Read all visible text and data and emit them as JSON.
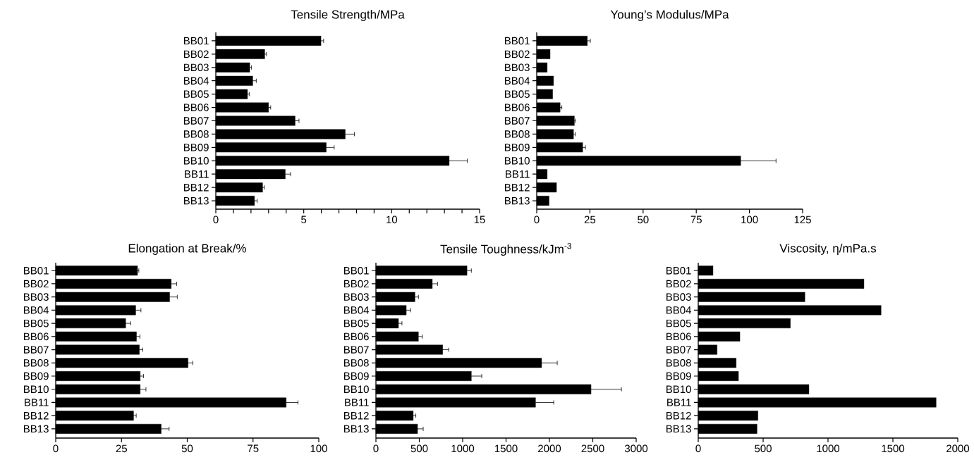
{
  "chart_data": [
    {
      "type": "bar",
      "orientation": "horizontal",
      "title": "Tensile Strength/MPa",
      "categories": [
        "BB01",
        "BB02",
        "BB03",
        "BB04",
        "BB05",
        "BB06",
        "BB07",
        "BB08",
        "BB09",
        "BB10",
        "BB11",
        "BB12",
        "BB13"
      ],
      "color": "#000000",
      "values": [
        5.98,
        2.78,
        1.93,
        2.1,
        1.8,
        3.0,
        4.51,
        7.36,
        6.28,
        13.27,
        3.95,
        2.66,
        2.2
      ],
      "errors": [
        0.15,
        0.1,
        0.1,
        0.2,
        0.1,
        0.12,
        0.22,
        0.52,
        0.45,
        1.03,
        0.3,
        0.1,
        0.15
      ],
      "xlim": [
        0,
        15
      ],
      "xticks": [
        0,
        {
          "value": 1,
          "label": null
        },
        {
          "value": 2,
          "label": null
        },
        {
          "value": 3,
          "label": null
        },
        {
          "value": 4,
          "label": null
        },
        5,
        {
          "value": 6,
          "label": null
        },
        {
          "value": 7,
          "label": null
        },
        {
          "value": 8,
          "label": null
        },
        {
          "value": 9,
          "label": null
        },
        10,
        {
          "value": 11,
          "label": null
        },
        {
          "value": 12,
          "label": null
        },
        {
          "value": 13,
          "label": null
        },
        {
          "value": 14,
          "label": null
        },
        15
      ]
    },
    {
      "type": "bar",
      "orientation": "horizontal",
      "title": "Young’s Modulus/MPa",
      "categories": [
        "BB01",
        "BB02",
        "BB03",
        "BB04",
        "BB05",
        "BB06",
        "BB07",
        "BB08",
        "BB09",
        "BB10",
        "BB11",
        "BB12",
        "BB13"
      ],
      "color": "#000000",
      "values": [
        23.8,
        6.3,
        4.9,
        7.9,
        7.5,
        11.0,
        17.7,
        17.3,
        21.6,
        95.9,
        4.9,
        9.3,
        5.8
      ],
      "errors": [
        1.4,
        null,
        null,
        null,
        null,
        0.8,
        0.5,
        0.8,
        1.3,
        16.6,
        null,
        null,
        null
      ],
      "xlim": [
        0,
        125
      ],
      "xticks": [
        0,
        25,
        50,
        75,
        100,
        125
      ]
    },
    {
      "type": "bar",
      "orientation": "horizontal",
      "title": "Elongation at Break/%",
      "categories": [
        "BB01",
        "BB02",
        "BB03",
        "BB04",
        "BB05",
        "BB06",
        "BB07",
        "BB08",
        "BB09",
        "BB10",
        "BB11",
        "BB12",
        "BB13"
      ],
      "color": "#000000",
      "values": [
        31.1,
        43.9,
        43.3,
        30.4,
        26.6,
        30.7,
        31.8,
        50.3,
        32.1,
        32.1,
        87.6,
        29.6,
        40.1
      ],
      "errors": [
        0.5,
        2.1,
        2.9,
        2.0,
        1.9,
        1.3,
        1.3,
        1.8,
        1.3,
        2.2,
        4.5,
        1.0,
        3.0
      ],
      "xlim": [
        0,
        100
      ],
      "xticks": [
        0,
        25,
        50,
        75,
        100
      ]
    },
    {
      "type": "bar",
      "orientation": "horizontal",
      "title": "Tensile Toughness/kJm$^{-3}$",
      "categories": [
        "BB01",
        "BB02",
        "BB03",
        "BB04",
        "BB05",
        "BB06",
        "BB07",
        "BB08",
        "BB09",
        "BB10",
        "BB11",
        "BB12",
        "BB13"
      ],
      "color": "#000000",
      "values": [
        1050,
        650,
        450,
        350,
        260,
        490,
        770,
        1910,
        1100,
        2480,
        1840,
        430,
        480
      ],
      "errors": [
        50,
        60,
        40,
        50,
        40,
        45,
        70,
        180,
        120,
        350,
        210,
        30,
        65
      ],
      "xlim": [
        0,
        3000
      ],
      "xticks": [
        0,
        500,
        1000,
        1500,
        2000,
        2500,
        3000
      ]
    },
    {
      "type": "bar",
      "orientation": "horizontal",
      "title": "Viscosity, η/mPa.s",
      "categories": [
        "BB01",
        "BB02",
        "BB03",
        "BB04",
        "BB05",
        "BB06",
        "BB07",
        "BB08",
        "BB09",
        "BB10",
        "BB11",
        "BB12",
        "BB13"
      ],
      "color": "#000000",
      "values": [
        114,
        1277,
        822,
        1409,
        710,
        321,
        145,
        292,
        310,
        853,
        1833,
        460,
        453
      ],
      "xlim": [
        0,
        2000
      ],
      "xticks": [
        0,
        500,
        1000,
        1500,
        2000
      ]
    }
  ]
}
